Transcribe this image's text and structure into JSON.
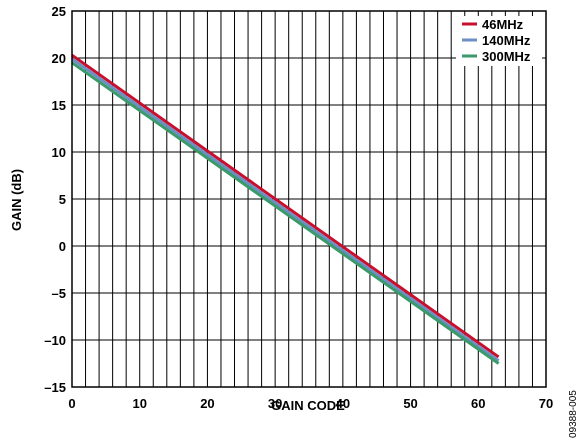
{
  "chart_data": {
    "type": "line",
    "title": "",
    "xlabel": "GAIN CODE",
    "ylabel": "GAIN (dB)",
    "xlim": [
      0,
      70
    ],
    "ylim": [
      -15,
      25
    ],
    "x_ticks": [
      0,
      10,
      20,
      30,
      40,
      50,
      60,
      70
    ],
    "y_ticks": [
      -15,
      -10,
      -5,
      0,
      5,
      10,
      15,
      20,
      25
    ],
    "y_tick_labels": [
      "–15",
      "–10",
      "–5",
      "0",
      "5",
      "10",
      "15",
      "20",
      "25"
    ],
    "x_minor_step": 2,
    "y_minor_step": 5,
    "grid": true,
    "legend_position": "top-right",
    "series": [
      {
        "name": "46MHz",
        "color": "#c8102e",
        "x": [
          0,
          63
        ],
        "y": [
          20.3,
          -11.8
        ]
      },
      {
        "name": "140MHz",
        "color": "#6b8fc2",
        "x": [
          0,
          63
        ],
        "y": [
          19.9,
          -12.2
        ]
      },
      {
        "name": "300MHz",
        "color": "#3a9a6a",
        "x": [
          0,
          63
        ],
        "y": [
          19.5,
          -12.5
        ]
      }
    ],
    "figure_id": "09388-005"
  }
}
